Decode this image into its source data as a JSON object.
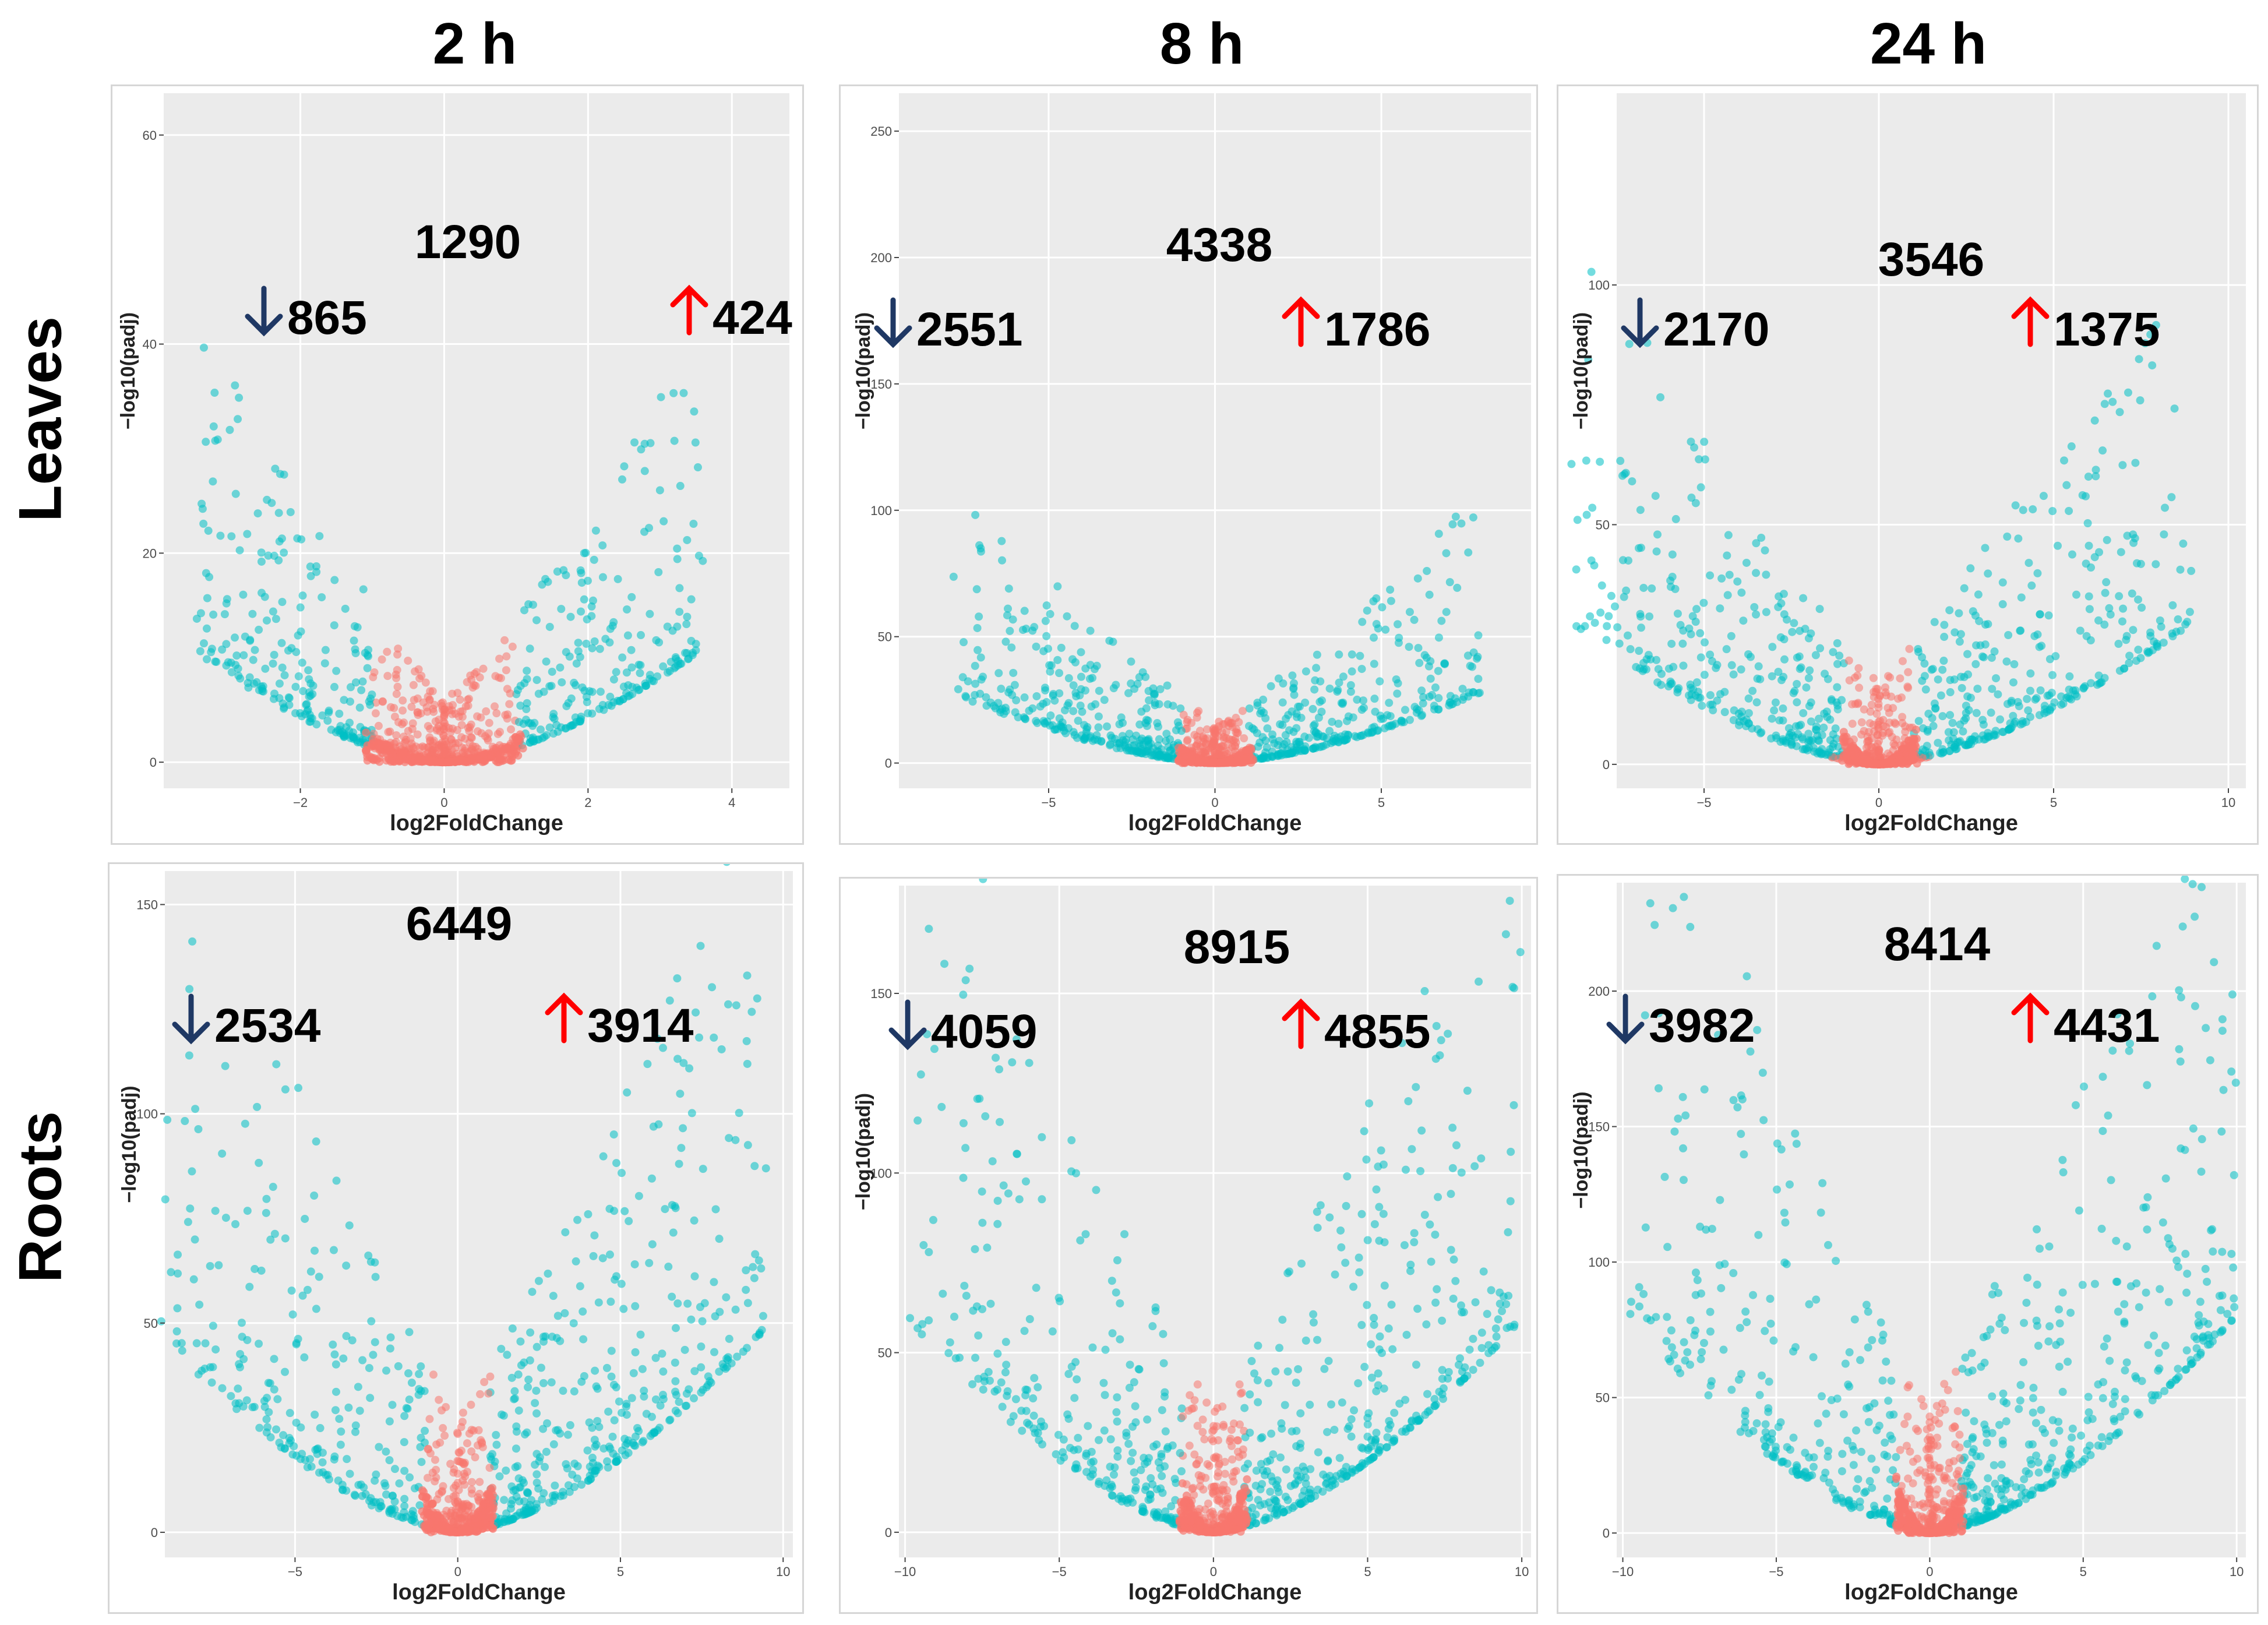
{
  "column_titles": [
    "2 h",
    "8 h",
    "24 h"
  ],
  "row_labels": [
    "Leaves",
    "Roots"
  ],
  "colors": {
    "down_arrow": "#1f3864",
    "up_arrow": "#ff0000",
    "significant": "#00bfc4",
    "non_significant": "#f8766d",
    "plot_bg": "#ebebeb",
    "grid": "#ffffff"
  },
  "chart_data": [
    {
      "id": "leaves-2h",
      "type": "scatter",
      "subtype": "volcano",
      "xlabel": "log2FoldChange",
      "ylabel": "−log10(padj)",
      "xlim": [
        -3.9,
        4.8
      ],
      "ylim": [
        -2.5,
        64
      ],
      "xticks": [
        -2,
        0,
        2,
        4
      ],
      "yticks": [
        0,
        20,
        40,
        60
      ],
      "total": "1290",
      "down": "865",
      "up": "424",
      "xmax_pts": 3.6,
      "ymax_pts": 31,
      "skew": 1.0
    },
    {
      "id": "leaves-8h",
      "type": "scatter",
      "subtype": "volcano",
      "xlabel": "log2FoldChange",
      "ylabel": "−log10(padj)",
      "xlim": [
        -9.5,
        9.5
      ],
      "ylim": [
        -10,
        265
      ],
      "xticks": [
        -5,
        0,
        5
      ],
      "yticks": [
        0,
        50,
        100,
        150,
        200,
        250
      ],
      "total": "4338",
      "down": "2551",
      "up": "1786",
      "xmax_pts": 8,
      "ymax_pts": 80,
      "skew": 1.0
    },
    {
      "id": "leaves-24h",
      "type": "scatter",
      "subtype": "volcano",
      "xlabel": "log2FoldChange",
      "ylabel": "−log10(padj)",
      "xlim": [
        -7.5,
        10.5
      ],
      "ylim": [
        -5,
        140
      ],
      "xticks": [
        -5,
        0,
        5,
        10
      ],
      "yticks": [
        0,
        50,
        100
      ],
      "total": "3546",
      "down": "2170",
      "up": "1375",
      "xmax_pts": 9,
      "ymax_pts": 85,
      "skew": 1.0
    },
    {
      "id": "roots-2h",
      "type": "scatter",
      "subtype": "volcano",
      "xlabel": "log2FoldChange",
      "ylabel": "−log10(padj)",
      "xlim": [
        -9,
        10.3
      ],
      "ylim": [
        -6,
        158
      ],
      "xticks": [
        -5,
        0,
        5,
        10
      ],
      "yticks": [
        0,
        50,
        100,
        150
      ],
      "total": "6449",
      "down": "2534",
      "up": "3914",
      "xmax_pts": 9.5,
      "ymax_pts": 140,
      "skew": 1.6
    },
    {
      "id": "roots-8h",
      "type": "scatter",
      "subtype": "volcano",
      "xlabel": "log2FoldChange",
      "ylabel": "−log10(padj)",
      "xlim": [
        -10.2,
        10.3
      ],
      "ylim": [
        -7,
        180
      ],
      "xticks": [
        -10,
        -5,
        0,
        5,
        10
      ],
      "yticks": [
        0,
        50,
        100,
        150
      ],
      "total": "8915",
      "down": "4059",
      "up": "4855",
      "xmax_pts": 10,
      "ymax_pts": 170,
      "skew": 1.4
    },
    {
      "id": "roots-24h",
      "type": "scatter",
      "subtype": "volcano",
      "xlabel": "log2FoldChange",
      "ylabel": "−log10(padj)",
      "xlim": [
        -10.2,
        10.3
      ],
      "ylim": [
        -9,
        240
      ],
      "xticks": [
        -10,
        -5,
        0,
        5,
        10
      ],
      "yticks": [
        0,
        50,
        100,
        150,
        200
      ],
      "total": "8414",
      "down": "3982",
      "up": "4431",
      "xmax_pts": 10,
      "ymax_pts": 230,
      "skew": 1.5
    }
  ]
}
